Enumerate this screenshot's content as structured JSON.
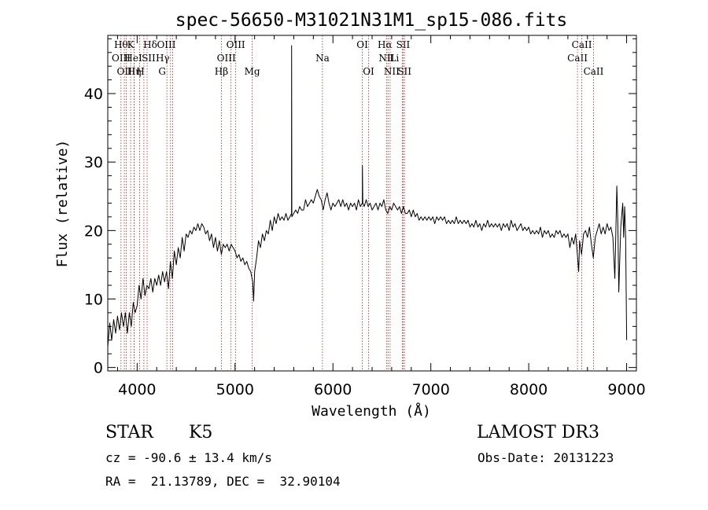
{
  "chart_data": {
    "type": "line",
    "title": "spec-56650-M31021N31M1_sp15-086.fits",
    "xlabel": "Wavelength (Å)",
    "ylabel": "Flux (relative)",
    "xlim": [
      3700,
      9100
    ],
    "ylim": [
      -0.5,
      48.5
    ],
    "xticks": [
      4000,
      5000,
      6000,
      7000,
      8000,
      9000
    ],
    "yticks": [
      0,
      10,
      20,
      30,
      40
    ],
    "grid": false,
    "series": [
      {
        "points": [
          [
            3700,
            3.0
          ],
          [
            3720,
            6.5
          ],
          [
            3740,
            4.0
          ],
          [
            3760,
            7.0
          ],
          [
            3780,
            5.0
          ],
          [
            3800,
            7.5
          ],
          [
            3820,
            5.5
          ],
          [
            3840,
            8.0
          ],
          [
            3860,
            6.0
          ],
          [
            3880,
            8.0
          ],
          [
            3900,
            5.0
          ],
          [
            3920,
            8.0
          ],
          [
            3940,
            6.0
          ],
          [
            3960,
            9.5
          ],
          [
            3980,
            8.0
          ],
          [
            4000,
            9.0
          ],
          [
            4020,
            12.0
          ],
          [
            4040,
            10.0
          ],
          [
            4060,
            13.0
          ],
          [
            4080,
            10.5
          ],
          [
            4100,
            12.0
          ],
          [
            4120,
            11.5
          ],
          [
            4140,
            13.0
          ],
          [
            4160,
            11.0
          ],
          [
            4180,
            13.0
          ],
          [
            4200,
            12.0
          ],
          [
            4220,
            13.5
          ],
          [
            4240,
            12.0
          ],
          [
            4260,
            14.0
          ],
          [
            4280,
            12.5
          ],
          [
            4300,
            14.0
          ],
          [
            4320,
            11.5
          ],
          [
            4340,
            15.5
          ],
          [
            4360,
            13.0
          ],
          [
            4380,
            17.0
          ],
          [
            4400,
            15.0
          ],
          [
            4420,
            17.5
          ],
          [
            4440,
            16.0
          ],
          [
            4460,
            19.0
          ],
          [
            4480,
            17.0
          ],
          [
            4500,
            19.5
          ],
          [
            4520,
            19.0
          ],
          [
            4540,
            20.0
          ],
          [
            4560,
            19.5
          ],
          [
            4580,
            20.5
          ],
          [
            4600,
            20.0
          ],
          [
            4620,
            21.0
          ],
          [
            4640,
            20.0
          ],
          [
            4660,
            21.0
          ],
          [
            4680,
            20.5
          ],
          [
            4700,
            19.5
          ],
          [
            4720,
            20.0
          ],
          [
            4740,
            18.5
          ],
          [
            4760,
            19.5
          ],
          [
            4780,
            17.5
          ],
          [
            4800,
            19.0
          ],
          [
            4820,
            17.0
          ],
          [
            4840,
            18.5
          ],
          [
            4860,
            16.5
          ],
          [
            4880,
            18.0
          ],
          [
            4900,
            17.5
          ],
          [
            4920,
            18.0
          ],
          [
            4940,
            17.0
          ],
          [
            4960,
            18.0
          ],
          [
            4980,
            17.5
          ],
          [
            5000,
            17.0
          ],
          [
            5020,
            16.0
          ],
          [
            5040,
            16.5
          ],
          [
            5060,
            15.5
          ],
          [
            5080,
            16.0
          ],
          [
            5100,
            15.0
          ],
          [
            5120,
            15.5
          ],
          [
            5140,
            14.5
          ],
          [
            5160,
            14.0
          ],
          [
            5180,
            12.5
          ],
          [
            5190,
            9.7
          ],
          [
            5200,
            14.0
          ],
          [
            5220,
            16.0
          ],
          [
            5240,
            18.5
          ],
          [
            5260,
            17.5
          ],
          [
            5280,
            19.5
          ],
          [
            5300,
            18.5
          ],
          [
            5320,
            20.0
          ],
          [
            5340,
            19.5
          ],
          [
            5360,
            21.5
          ],
          [
            5380,
            20.0
          ],
          [
            5400,
            22.0
          ],
          [
            5420,
            21.0
          ],
          [
            5440,
            22.5
          ],
          [
            5460,
            21.5
          ],
          [
            5480,
            22.0
          ],
          [
            5500,
            21.5
          ],
          [
            5520,
            22.5
          ],
          [
            5540,
            21.5
          ],
          [
            5560,
            22.0
          ],
          [
            5577,
            22.5
          ],
          [
            5578,
            47.0
          ],
          [
            5580,
            22.0
          ],
          [
            5600,
            22.5
          ],
          [
            5620,
            23.0
          ],
          [
            5640,
            22.5
          ],
          [
            5660,
            23.5
          ],
          [
            5680,
            23.0
          ],
          [
            5700,
            23.0
          ],
          [
            5720,
            24.5
          ],
          [
            5740,
            23.5
          ],
          [
            5760,
            24.0
          ],
          [
            5780,
            24.5
          ],
          [
            5800,
            24.0
          ],
          [
            5820,
            25.0
          ],
          [
            5840,
            26.0
          ],
          [
            5860,
            25.0
          ],
          [
            5880,
            24.5
          ],
          [
            5900,
            23.0
          ],
          [
            5920,
            24.5
          ],
          [
            5940,
            25.5
          ],
          [
            5960,
            24.0
          ],
          [
            5980,
            23.0
          ],
          [
            6000,
            24.0
          ],
          [
            6020,
            23.5
          ],
          [
            6040,
            24.0
          ],
          [
            6060,
            24.5
          ],
          [
            6080,
            23.5
          ],
          [
            6100,
            24.5
          ],
          [
            6120,
            23.5
          ],
          [
            6140,
            24.0
          ],
          [
            6160,
            23.0
          ],
          [
            6180,
            24.0
          ],
          [
            6200,
            23.5
          ],
          [
            6220,
            24.0
          ],
          [
            6240,
            23.0
          ],
          [
            6260,
            24.5
          ],
          [
            6280,
            23.5
          ],
          [
            6300,
            24.0
          ],
          [
            6301,
            29.5
          ],
          [
            6305,
            24.0
          ],
          [
            6320,
            23.5
          ],
          [
            6340,
            24.5
          ],
          [
            6360,
            23.5
          ],
          [
            6380,
            24.0
          ],
          [
            6400,
            23.0
          ],
          [
            6420,
            23.5
          ],
          [
            6440,
            24.0
          ],
          [
            6460,
            23.0
          ],
          [
            6480,
            24.0
          ],
          [
            6500,
            23.5
          ],
          [
            6520,
            24.5
          ],
          [
            6540,
            23.0
          ],
          [
            6560,
            22.5
          ],
          [
            6580,
            23.5
          ],
          [
            6600,
            23.0
          ],
          [
            6620,
            24.0
          ],
          [
            6640,
            23.5
          ],
          [
            6660,
            23.0
          ],
          [
            6680,
            23.5
          ],
          [
            6700,
            22.5
          ],
          [
            6720,
            23.5
          ],
          [
            6740,
            22.5
          ],
          [
            6760,
            22.5
          ],
          [
            6780,
            23.0
          ],
          [
            6800,
            22.0
          ],
          [
            6820,
            23.0
          ],
          [
            6840,
            22.0
          ],
          [
            6860,
            22.5
          ],
          [
            6880,
            21.5
          ],
          [
            6900,
            22.0
          ],
          [
            6920,
            21.5
          ],
          [
            6940,
            22.0
          ],
          [
            6960,
            21.5
          ],
          [
            6980,
            22.0
          ],
          [
            7000,
            21.5
          ],
          [
            7020,
            22.0
          ],
          [
            7040,
            21.0
          ],
          [
            7060,
            22.0
          ],
          [
            7080,
            21.5
          ],
          [
            7100,
            22.0
          ],
          [
            7120,
            21.5
          ],
          [
            7140,
            22.0
          ],
          [
            7160,
            21.0
          ],
          [
            7180,
            21.5
          ],
          [
            7200,
            21.0
          ],
          [
            7220,
            21.5
          ],
          [
            7240,
            21.0
          ],
          [
            7260,
            22.0
          ],
          [
            7280,
            21.0
          ],
          [
            7300,
            21.5
          ],
          [
            7320,
            21.0
          ],
          [
            7340,
            21.5
          ],
          [
            7360,
            21.0
          ],
          [
            7380,
            21.5
          ],
          [
            7400,
            20.5
          ],
          [
            7420,
            21.0
          ],
          [
            7440,
            20.5
          ],
          [
            7460,
            21.5
          ],
          [
            7480,
            20.5
          ],
          [
            7500,
            21.0
          ],
          [
            7520,
            20.0
          ],
          [
            7540,
            21.0
          ],
          [
            7560,
            20.5
          ],
          [
            7580,
            21.5
          ],
          [
            7600,
            20.5
          ],
          [
            7620,
            21.0
          ],
          [
            7640,
            20.5
          ],
          [
            7660,
            21.0
          ],
          [
            7680,
            20.5
          ],
          [
            7700,
            21.0
          ],
          [
            7720,
            20.0
          ],
          [
            7740,
            21.0
          ],
          [
            7760,
            20.5
          ],
          [
            7780,
            21.0
          ],
          [
            7800,
            20.0
          ],
          [
            7820,
            21.5
          ],
          [
            7840,
            20.5
          ],
          [
            7860,
            21.0
          ],
          [
            7880,
            20.0
          ],
          [
            7900,
            20.5
          ],
          [
            7920,
            21.0
          ],
          [
            7940,
            20.0
          ],
          [
            7960,
            20.5
          ],
          [
            7980,
            20.0
          ],
          [
            8000,
            20.5
          ],
          [
            8020,
            19.5
          ],
          [
            8040,
            20.0
          ],
          [
            8060,
            19.5
          ],
          [
            8080,
            20.0
          ],
          [
            8100,
            19.5
          ],
          [
            8120,
            20.5
          ],
          [
            8140,
            19.0
          ],
          [
            8160,
            20.0
          ],
          [
            8180,
            19.5
          ],
          [
            8200,
            20.0
          ],
          [
            8220,
            19.0
          ],
          [
            8240,
            19.5
          ],
          [
            8260,
            19.0
          ],
          [
            8280,
            20.0
          ],
          [
            8300,
            19.5
          ],
          [
            8320,
            20.0
          ],
          [
            8340,
            19.0
          ],
          [
            8360,
            19.5
          ],
          [
            8380,
            19.0
          ],
          [
            8400,
            19.5
          ],
          [
            8420,
            17.5
          ],
          [
            8440,
            19.0
          ],
          [
            8460,
            18.0
          ],
          [
            8480,
            19.5
          ],
          [
            8500,
            16.0
          ],
          [
            8510,
            14.0
          ],
          [
            8520,
            18.5
          ],
          [
            8540,
            16.5
          ],
          [
            8560,
            19.5
          ],
          [
            8580,
            20.0
          ],
          [
            8600,
            19.0
          ],
          [
            8620,
            20.5
          ],
          [
            8640,
            18.0
          ],
          [
            8660,
            16.0
          ],
          [
            8680,
            19.0
          ],
          [
            8700,
            20.0
          ],
          [
            8720,
            21.0
          ],
          [
            8740,
            19.5
          ],
          [
            8760,
            20.5
          ],
          [
            8780,
            19.5
          ],
          [
            8800,
            21.0
          ],
          [
            8820,
            20.0
          ],
          [
            8840,
            20.5
          ],
          [
            8860,
            19.0
          ],
          [
            8880,
            13.0
          ],
          [
            8890,
            20.0
          ],
          [
            8900,
            26.5
          ],
          [
            8910,
            21.0
          ],
          [
            8920,
            11.0
          ],
          [
            8940,
            20.5
          ],
          [
            8960,
            24.0
          ],
          [
            8970,
            19.0
          ],
          [
            8980,
            23.5
          ],
          [
            8990,
            19.0
          ],
          [
            9000,
            4.0
          ]
        ]
      }
    ],
    "line_markers": [
      {
        "w": 3835,
        "label": "Hθ",
        "row": 0,
        "dx": 0
      },
      {
        "w": 3869,
        "label": "OIII",
        "row": 1,
        "dx": -4
      },
      {
        "w": 3889,
        "label": "OIII",
        "row": 2,
        "dx": 0
      },
      {
        "w": 3934,
        "label": "K",
        "row": 0,
        "dx": 0
      },
      {
        "w": 3970,
        "label": "Hη",
        "row": 2,
        "dx": 0
      },
      {
        "w": 3969,
        "label": "H",
        "row": 2,
        "dx": 8
      },
      {
        "w": 4026,
        "label": "HeI",
        "row": 1,
        "dx": -8
      },
      {
        "w": 4069,
        "label": "SII",
        "row": 1,
        "dx": 6
      },
      {
        "w": 4102,
        "label": "Hδ",
        "row": 0,
        "dx": 4
      },
      {
        "w": 4304,
        "label": "G",
        "row": 2,
        "dx": -6
      },
      {
        "w": 4341,
        "label": "Hγ",
        "row": 1,
        "dx": -10
      },
      {
        "w": 4363,
        "label": "OIII",
        "row": 0,
        "dx": -8
      },
      {
        "w": 4861,
        "label": "Hβ",
        "row": 2,
        "dx": 0
      },
      {
        "w": 4959,
        "label": "OIII",
        "row": 1,
        "dx": -6
      },
      {
        "w": 5007,
        "label": "OIII",
        "row": 0,
        "dx": 0
      },
      {
        "w": 5175,
        "label": "Mg",
        "row": 2,
        "dx": 0
      },
      {
        "w": 5893,
        "label": "Na",
        "row": 1,
        "dx": 0
      },
      {
        "w": 6300,
        "label": "OI",
        "row": 0,
        "dx": 0
      },
      {
        "w": 6364,
        "label": "OI",
        "row": 2,
        "dx": 0
      },
      {
        "w": 6548,
        "label": "NII",
        "row": 1,
        "dx": 0
      },
      {
        "w": 6563,
        "label": "Hα",
        "row": 0,
        "dx": -4
      },
      {
        "w": 6584,
        "label": "NII",
        "row": 2,
        "dx": 2
      },
      {
        "w": 6717,
        "label": "SII",
        "row": 0,
        "dx": 0
      },
      {
        "w": 6708,
        "label": "Li",
        "row": 1,
        "dx": -10
      },
      {
        "w": 6731,
        "label": "SII",
        "row": 2,
        "dx": 0
      },
      {
        "w": 8498,
        "label": "CaII",
        "row": 1,
        "dx": 0
      },
      {
        "w": 8542,
        "label": "CaII",
        "row": 0,
        "dx": 0
      },
      {
        "w": 8662,
        "label": "CaII",
        "row": 2,
        "dx": 0
      }
    ]
  },
  "footer": {
    "class": "STAR",
    "subclass": "K5",
    "cz": "cz = -90.6 ± 13.4 km/s",
    "coords": "RA =  21.13789, DEC =  32.90104",
    "survey": "LAMOST DR3",
    "obsdate": "Obs-Date: 20131223"
  }
}
